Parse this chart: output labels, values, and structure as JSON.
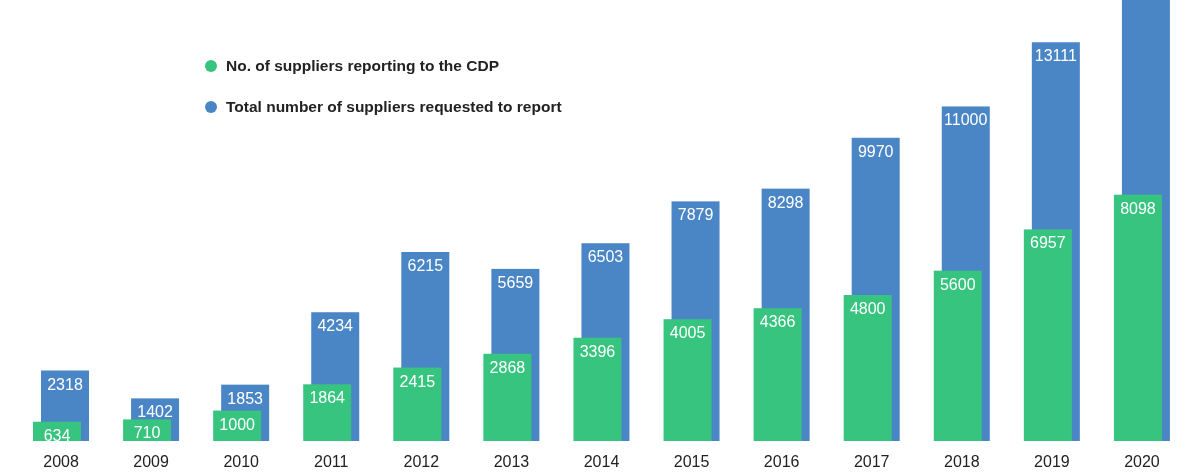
{
  "chart_data": {
    "type": "bar",
    "categories": [
      "2008",
      "2009",
      "2010",
      "2011",
      "2012",
      "2013",
      "2014",
      "2015",
      "2016",
      "2017",
      "2018",
      "2019",
      "2020"
    ],
    "series": [
      {
        "name": "No. of suppliers reporting to the CDP",
        "color": "#37c47f",
        "values": [
          634,
          710,
          1000,
          1864,
          2415,
          2868,
          3396,
          4005,
          4366,
          4800,
          5600,
          6957,
          8098
        ],
        "value_labels": [
          "634",
          "710",
          "1000",
          "1864",
          "2415",
          "2868",
          "3396",
          "4005",
          "4366",
          "4800",
          "5600",
          "6957",
          "8098"
        ]
      },
      {
        "name": "Total number of suppliers requested to report",
        "color": "#4a86c6",
        "values": [
          2318,
          1402,
          1853,
          4234,
          6215,
          5659,
          6503,
          7879,
          8298,
          9970,
          11000,
          13111,
          14500
        ],
        "value_labels": [
          "2318",
          "1402",
          "1853",
          "4234",
          "6215",
          "5659",
          "6503",
          "7879",
          "8298",
          "9970",
          "11000",
          "13111",
          null
        ]
      }
    ],
    "legend": "top left",
    "tick_labels": "x"
  }
}
